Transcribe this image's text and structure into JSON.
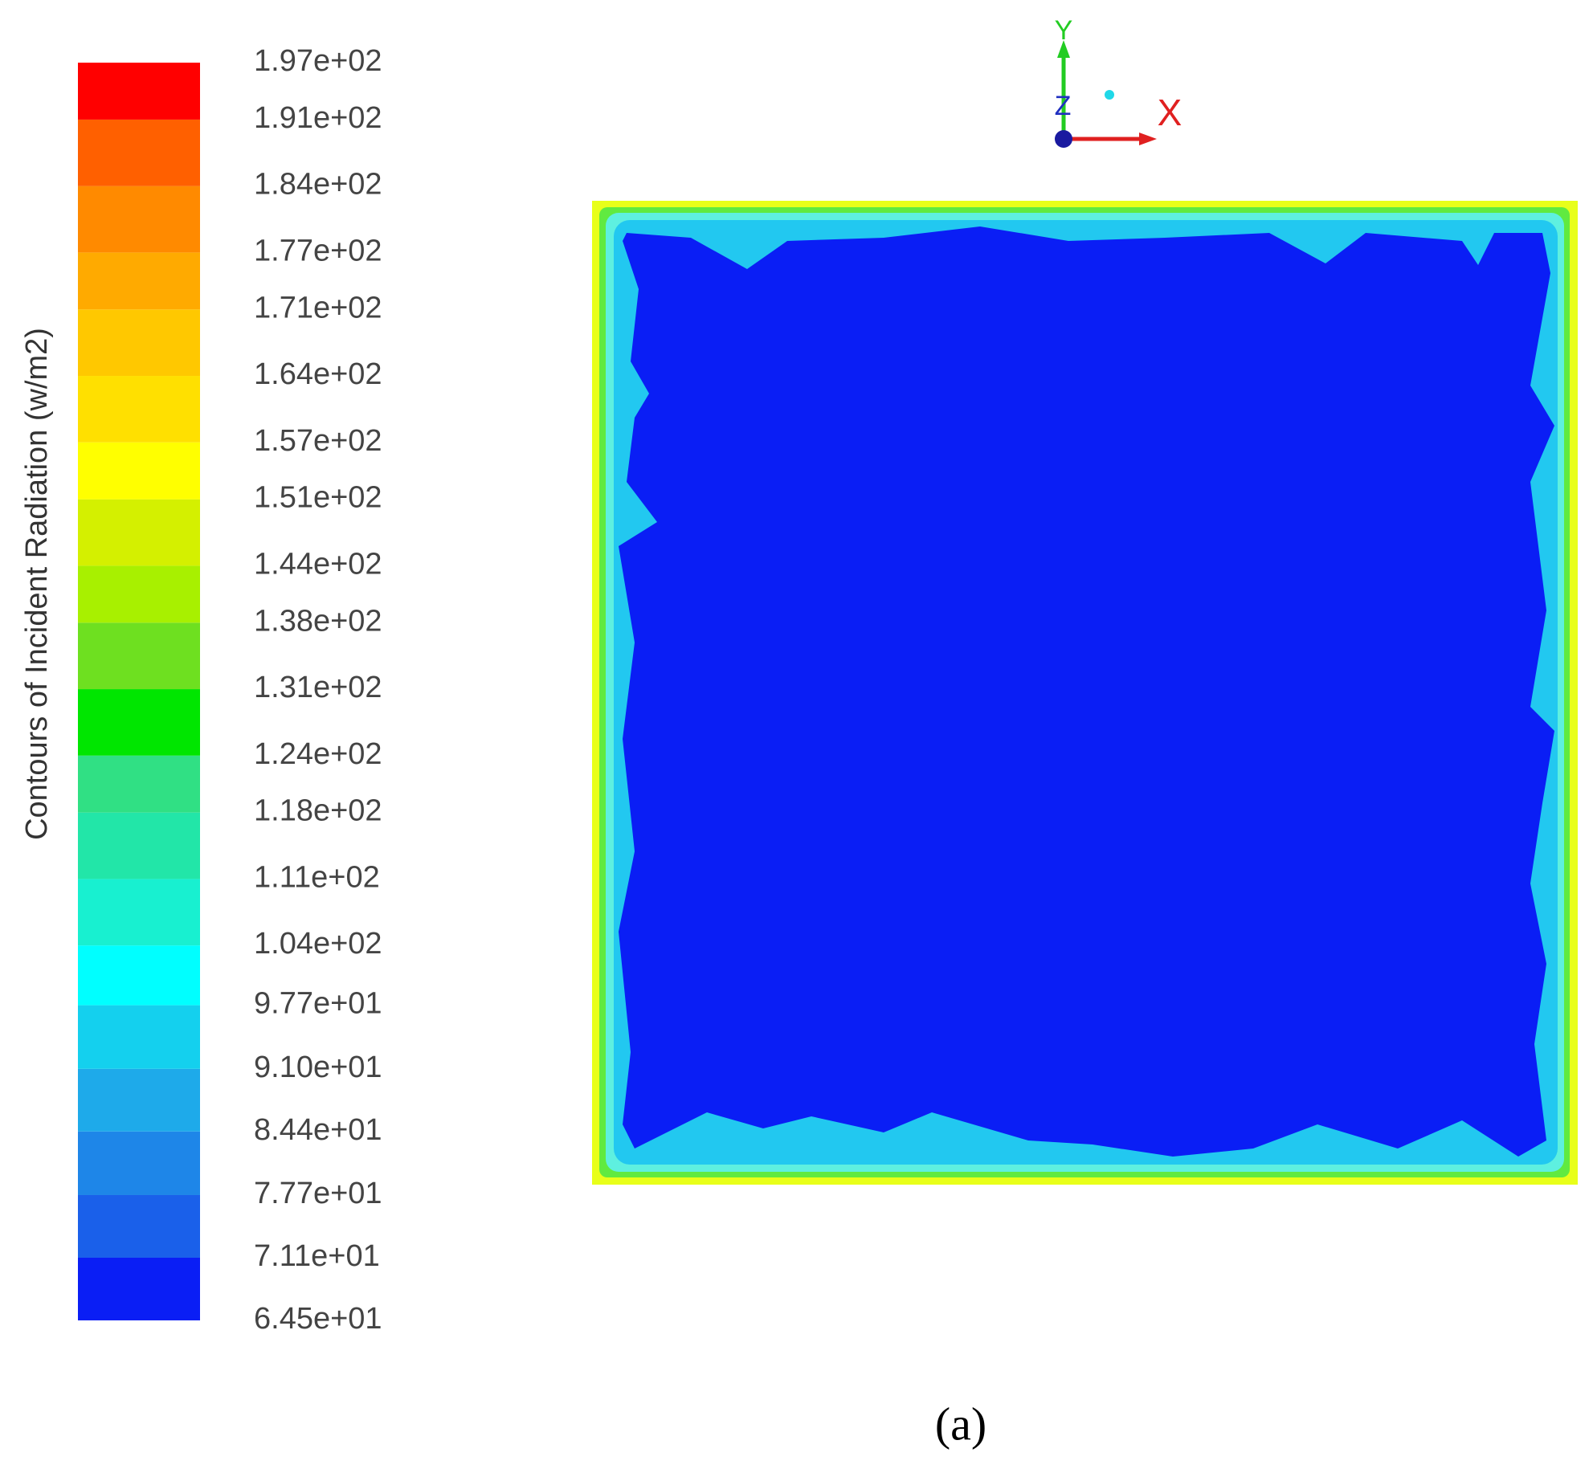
{
  "chart_data": {
    "type": "contour",
    "title": "Contours of Incident Radiation (w/m2)",
    "caption": "(a)",
    "axes_labels": [
      "Y",
      "Z",
      "X"
    ],
    "ylim": [
      64.5,
      197
    ],
    "yticks": [
      {
        "value": 64.5,
        "label": "6.45e+01"
      },
      {
        "value": 71.1,
        "label": "7.11e+01"
      },
      {
        "value": 77.7,
        "label": "7.77e+01"
      },
      {
        "value": 84.4,
        "label": "8.44e+01"
      },
      {
        "value": 91.0,
        "label": "9.10e+01"
      },
      {
        "value": 97.7,
        "label": "9.77e+01"
      },
      {
        "value": 104,
        "label": "1.04e+02"
      },
      {
        "value": 111,
        "label": "1.11e+02"
      },
      {
        "value": 118,
        "label": "1.18e+02"
      },
      {
        "value": 124,
        "label": "1.24e+02"
      },
      {
        "value": 131,
        "label": "1.31e+02"
      },
      {
        "value": 138,
        "label": "1.38e+02"
      },
      {
        "value": 144,
        "label": "1.44e+02"
      },
      {
        "value": 151,
        "label": "1.51e+02"
      },
      {
        "value": 157,
        "label": "1.57e+02"
      },
      {
        "value": 164,
        "label": "1.64e+02"
      },
      {
        "value": 171,
        "label": "1.71e+02"
      },
      {
        "value": 177,
        "label": "1.77e+02"
      },
      {
        "value": 184,
        "label": "1.84e+02"
      },
      {
        "value": 191,
        "label": "1.91e+02"
      },
      {
        "value": 197,
        "label": "1.97e+02"
      }
    ],
    "colors": [
      "#0a1ef5",
      "#1a60ea",
      "#1e86e8",
      "#1eaaea",
      "#14d0ee",
      "#00ffff",
      "#18f0d0",
      "#22e6a8",
      "#30e084",
      "#00e600",
      "#6ee020",
      "#a8f000",
      "#d4f000",
      "#ffff00",
      "#ffe000",
      "#ffc800",
      "#ffaa00",
      "#ff8a00",
      "#ff6000",
      "#ff0000"
    ]
  }
}
